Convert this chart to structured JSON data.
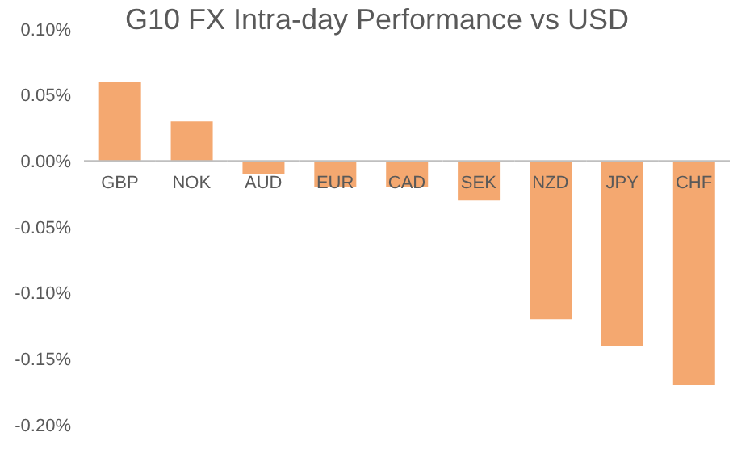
{
  "chart_data": {
    "type": "bar",
    "title": "G10 FX Intra-day Performance vs USD",
    "categories": [
      "GBP",
      "NOK",
      "AUD",
      "EUR",
      "CAD",
      "SEK",
      "NZD",
      "JPY",
      "CHF"
    ],
    "values": [
      0.06,
      0.03,
      -0.01,
      -0.02,
      -0.02,
      -0.03,
      -0.12,
      -0.14,
      -0.17
    ],
    "color": "#f4a870",
    "ylim": [
      -0.2,
      0.1
    ],
    "yticks": [
      {
        "value": -0.2,
        "label": "-0.20%"
      },
      {
        "value": -0.15,
        "label": "-0.15%"
      },
      {
        "value": -0.1,
        "label": "-0.10%"
      },
      {
        "value": -0.05,
        "label": "-0.05%"
      },
      {
        "value": 0,
        "label": "0.00%"
      },
      {
        "value": 0.05,
        "label": "0.05%"
      },
      {
        "value": 0.1,
        "label": "0.10%"
      }
    ],
    "grid": false,
    "legend": false
  }
}
